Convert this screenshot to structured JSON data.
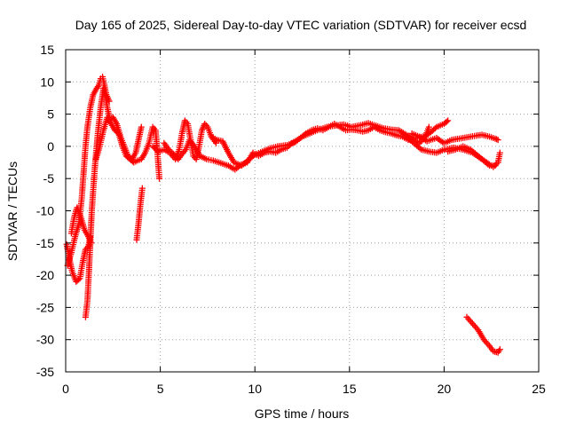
{
  "chart_data": {
    "type": "scatter",
    "title": "Day 165 of 2025, Sidereal Day-to-day VTEC variation (SDTVAR) for receiver ecsd",
    "xlabel": "GPS time / hours",
    "ylabel": "SDTVAR / TECUs",
    "xlim": [
      0,
      25
    ],
    "ylim": [
      -35,
      15
    ],
    "xticks": [
      0,
      5,
      10,
      15,
      20,
      25
    ],
    "yticks": [
      15,
      10,
      5,
      0,
      -5,
      -10,
      -15,
      -20,
      -25,
      -30,
      -35
    ],
    "grid": true,
    "marker": "+",
    "series": [
      {
        "name": "SDTVAR",
        "color": "#ff0000",
        "tracks": [
          [
            [
              0.05,
              -15.2
            ],
            [
              0.2,
              -17.5
            ],
            [
              0.35,
              -19.5
            ],
            [
              0.55,
              -21
            ],
            [
              0.75,
              -20.5
            ],
            [
              0.9,
              -18
            ],
            [
              1.05,
              -16
            ],
            [
              1.2,
              -15.5
            ],
            [
              1.3,
              -14
            ]
          ],
          [
            [
              0.1,
              -18.5
            ],
            [
              0.3,
              -16.5
            ],
            [
              0.5,
              -14
            ],
            [
              0.7,
              -12
            ],
            [
              0.85,
              -8
            ],
            [
              0.95,
              -4
            ],
            [
              1.05,
              0
            ],
            [
              1.15,
              3
            ],
            [
              1.3,
              6
            ],
            [
              1.45,
              8
            ],
            [
              1.6,
              8.8
            ],
            [
              1.75,
              9.5
            ],
            [
              1.85,
              10.5
            ],
            [
              1.95,
              10.8
            ],
            [
              2.05,
              9.5
            ],
            [
              2.15,
              8
            ],
            [
              2.3,
              7
            ]
          ],
          [
            [
              0.3,
              -13.5
            ],
            [
              0.45,
              -11
            ],
            [
              0.6,
              -9.5
            ],
            [
              0.8,
              -11
            ],
            [
              1.0,
              -13
            ],
            [
              1.2,
              -14
            ],
            [
              1.35,
              -15
            ]
          ],
          [
            [
              1.05,
              -26.5
            ],
            [
              1.15,
              -24
            ],
            [
              1.22,
              -20
            ],
            [
              1.3,
              -15
            ],
            [
              1.38,
              -10
            ],
            [
              1.45,
              -7
            ],
            [
              1.55,
              -3
            ],
            [
              1.7,
              2
            ],
            [
              1.85,
              6
            ],
            [
              2.0,
              9
            ],
            [
              2.1,
              8
            ],
            [
              2.2,
              6
            ],
            [
              2.35,
              4
            ],
            [
              2.5,
              4.5
            ],
            [
              2.7,
              3.5
            ],
            [
              2.9,
              1.5
            ],
            [
              3.1,
              0
            ],
            [
              3.3,
              -1.5
            ],
            [
              3.5,
              -2
            ],
            [
              3.7,
              -1
            ],
            [
              3.85,
              1
            ],
            [
              4.0,
              3
            ]
          ],
          [
            [
              1.6,
              -2
            ],
            [
              1.8,
              0
            ],
            [
              2.0,
              2.5
            ],
            [
              2.2,
              4.5
            ],
            [
              2.4,
              3.5
            ],
            [
              2.6,
              2.5
            ],
            [
              2.8,
              2
            ],
            [
              3.0,
              0
            ],
            [
              3.2,
              -1.5
            ],
            [
              3.4,
              -2
            ],
            [
              3.6,
              -2.5
            ],
            [
              3.8,
              -2.2
            ],
            [
              4.0,
              -2
            ],
            [
              4.2,
              -1
            ],
            [
              4.4,
              0.5
            ],
            [
              4.6,
              3
            ],
            [
              4.75,
              2.5
            ],
            [
              4.85,
              -1
            ],
            [
              4.95,
              -5
            ]
          ],
          [
            [
              3.75,
              -14.5
            ],
            [
              3.85,
              -12
            ],
            [
              3.95,
              -9
            ],
            [
              4.05,
              -6.5
            ]
          ],
          [
            [
              4.6,
              0
            ],
            [
              4.9,
              -0.8
            ],
            [
              5.2,
              -0.5
            ],
            [
              5.5,
              -1
            ],
            [
              5.8,
              -2
            ],
            [
              6.0,
              -0.5
            ],
            [
              6.15,
              2
            ],
            [
              6.3,
              4
            ],
            [
              6.45,
              3.5
            ],
            [
              6.6,
              1
            ],
            [
              6.75,
              -1.5
            ],
            [
              6.9,
              -2
            ],
            [
              7.05,
              0
            ],
            [
              7.2,
              2.5
            ],
            [
              7.35,
              3.5
            ],
            [
              7.5,
              3
            ],
            [
              7.7,
              1.5
            ],
            [
              7.95,
              0.5
            ]
          ],
          [
            [
              5.2,
              0.5
            ],
            [
              5.45,
              -0.5
            ],
            [
              5.7,
              -1.2
            ],
            [
              5.95,
              -2
            ],
            [
              6.15,
              -1.2
            ],
            [
              6.35,
              -0.5
            ],
            [
              6.55,
              1
            ],
            [
              6.8,
              0
            ],
            [
              7.1,
              -1.5
            ],
            [
              7.45,
              -2
            ],
            [
              7.8,
              -2.2
            ],
            [
              8.2,
              -2.6
            ],
            [
              8.6,
              -3
            ],
            [
              8.95,
              -3.6
            ],
            [
              9.3,
              -2.8
            ],
            [
              9.6,
              -2.5
            ],
            [
              9.9,
              -1
            ],
            [
              10.2,
              -1.5
            ],
            [
              10.5,
              -1
            ],
            [
              10.8,
              -0.8
            ],
            [
              11.1,
              -1
            ],
            [
              11.4,
              -0.5
            ],
            [
              11.7,
              -0.2
            ],
            [
              11.95,
              0.5
            ],
            [
              12.25,
              1
            ],
            [
              12.5,
              1.5
            ],
            [
              12.7,
              2
            ],
            [
              13.0,
              2.5
            ],
            [
              13.3,
              2.8
            ],
            [
              13.6,
              2.5
            ],
            [
              13.9,
              3
            ],
            [
              14.2,
              3.5
            ],
            [
              14.5,
              3
            ],
            [
              14.8,
              2.5
            ],
            [
              15.1,
              2.6
            ],
            [
              15.4,
              2.5
            ],
            [
              15.7,
              2.3
            ],
            [
              16.0,
              2.5
            ],
            [
              16.3,
              3
            ],
            [
              16.6,
              2.5
            ],
            [
              16.9,
              2.2
            ],
            [
              17.2,
              2
            ],
            [
              17.5,
              1.7
            ],
            [
              17.8,
              1.5
            ],
            [
              18.1,
              1
            ],
            [
              18.4,
              1
            ],
            [
              18.7,
              0.5
            ],
            [
              19.0,
              1.5
            ],
            [
              19.2,
              3
            ]
          ],
          [
            [
              7.7,
              1.5
            ],
            [
              8.0,
              1
            ],
            [
              8.3,
              0.8
            ],
            [
              8.6,
              -1
            ],
            [
              8.9,
              -2.5
            ],
            [
              9.3,
              -3
            ],
            [
              9.7,
              -2
            ],
            [
              10.0,
              -1.3
            ],
            [
              10.4,
              -0.8
            ],
            [
              10.8,
              -0.3
            ],
            [
              11.2,
              0
            ],
            [
              11.7,
              0.2
            ],
            [
              12.1,
              0.6
            ],
            [
              12.5,
              1.5
            ],
            [
              12.9,
              2
            ],
            [
              13.3,
              2.5
            ],
            [
              13.8,
              3
            ],
            [
              14.2,
              3.2
            ],
            [
              14.7,
              3.4
            ],
            [
              15.1,
              3
            ],
            [
              15.6,
              3.3
            ],
            [
              16.0,
              3.6
            ],
            [
              16.4,
              3.2
            ],
            [
              16.8,
              2.8
            ],
            [
              17.2,
              2.6
            ],
            [
              17.6,
              2.5
            ],
            [
              18.0,
              1.8
            ],
            [
              18.4,
              1.2
            ],
            [
              18.7,
              1.4
            ],
            [
              19.0,
              1.6
            ],
            [
              19.3,
              2.2
            ],
            [
              19.6,
              3
            ],
            [
              20.0,
              3.5
            ],
            [
              20.2,
              4
            ]
          ],
          [
            [
              18.0,
              1.5
            ],
            [
              18.4,
              0.5
            ],
            [
              18.8,
              -0.5
            ],
            [
              19.2,
              -0.8
            ],
            [
              19.6,
              -1
            ],
            [
              20.0,
              -0.5
            ],
            [
              20.5,
              -0.2
            ],
            [
              21.0,
              -0.5
            ],
            [
              21.5,
              -1
            ],
            [
              22.0,
              -2
            ],
            [
              22.4,
              -3
            ],
            [
              22.7,
              -3
            ]
          ],
          [
            [
              18.3,
              2
            ],
            [
              18.7,
              1.5
            ],
            [
              19.1,
              0.8
            ],
            [
              19.6,
              1.3
            ],
            [
              20.0,
              0.5
            ],
            [
              20.4,
              1
            ],
            [
              20.8,
              1.2
            ],
            [
              21.2,
              1.4
            ],
            [
              21.6,
              1.6
            ],
            [
              22.0,
              1.8
            ],
            [
              22.4,
              1.5
            ],
            [
              22.7,
              1.2
            ],
            [
              22.85,
              1
            ]
          ],
          [
            [
              20.2,
              -0.8
            ],
            [
              20.6,
              -0.5
            ],
            [
              21.0,
              0
            ],
            [
              21.4,
              -0.5
            ],
            [
              21.8,
              -1.5
            ],
            [
              22.1,
              -2.2
            ],
            [
              22.4,
              -2.8
            ],
            [
              22.6,
              -3.2
            ],
            [
              22.85,
              -2.5
            ],
            [
              22.95,
              -1
            ]
          ],
          [
            [
              21.2,
              -26.5
            ],
            [
              21.5,
              -27.5
            ],
            [
              21.8,
              -28.5
            ],
            [
              22.1,
              -30
            ],
            [
              22.4,
              -31
            ],
            [
              22.6,
              -31.8
            ],
            [
              22.85,
              -32
            ],
            [
              22.95,
              -31.5
            ]
          ]
        ]
      }
    ]
  }
}
